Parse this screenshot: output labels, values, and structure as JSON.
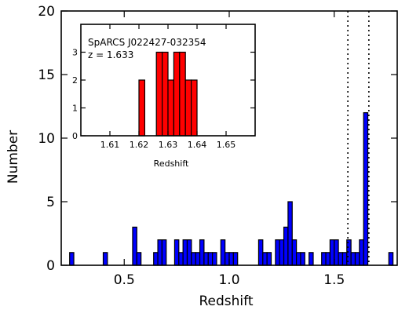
{
  "chart_data": [
    {
      "type": "bar",
      "panel": "main",
      "xlabel": "Redshift",
      "ylabel": "Number",
      "xlim": [
        0.2,
        1.8
      ],
      "ylim": [
        0,
        20
      ],
      "bin_width": 0.02,
      "xticks": [
        "0.5",
        "1.0",
        "1.5"
      ],
      "xtick_values": [
        0.5,
        1.0,
        1.5
      ],
      "yticks": [
        "0",
        "5",
        "10",
        "15",
        "20"
      ],
      "ytick_values": [
        0,
        5,
        10,
        15,
        20
      ],
      "bar_color": "#0000ff",
      "bins": [
        {
          "x": 0.24,
          "y": 1
        },
        {
          "x": 0.4,
          "y": 1
        },
        {
          "x": 0.54,
          "y": 3
        },
        {
          "x": 0.56,
          "y": 1
        },
        {
          "x": 0.64,
          "y": 1
        },
        {
          "x": 0.66,
          "y": 2
        },
        {
          "x": 0.68,
          "y": 2
        },
        {
          "x": 0.74,
          "y": 2
        },
        {
          "x": 0.76,
          "y": 1
        },
        {
          "x": 0.78,
          "y": 2
        },
        {
          "x": 0.8,
          "y": 2
        },
        {
          "x": 0.82,
          "y": 1
        },
        {
          "x": 0.84,
          "y": 1
        },
        {
          "x": 0.86,
          "y": 2
        },
        {
          "x": 0.88,
          "y": 1
        },
        {
          "x": 0.9,
          "y": 1
        },
        {
          "x": 0.92,
          "y": 1
        },
        {
          "x": 0.96,
          "y": 2
        },
        {
          "x": 0.98,
          "y": 1
        },
        {
          "x": 1.0,
          "y": 1
        },
        {
          "x": 1.02,
          "y": 1
        },
        {
          "x": 1.14,
          "y": 2
        },
        {
          "x": 1.16,
          "y": 1
        },
        {
          "x": 1.18,
          "y": 1
        },
        {
          "x": 1.22,
          "y": 2
        },
        {
          "x": 1.24,
          "y": 2
        },
        {
          "x": 1.26,
          "y": 3
        },
        {
          "x": 1.28,
          "y": 5
        },
        {
          "x": 1.3,
          "y": 2
        },
        {
          "x": 1.32,
          "y": 1
        },
        {
          "x": 1.34,
          "y": 1
        },
        {
          "x": 1.38,
          "y": 1
        },
        {
          "x": 1.44,
          "y": 1
        },
        {
          "x": 1.46,
          "y": 1
        },
        {
          "x": 1.48,
          "y": 2
        },
        {
          "x": 1.5,
          "y": 2
        },
        {
          "x": 1.52,
          "y": 1
        },
        {
          "x": 1.54,
          "y": 1
        },
        {
          "x": 1.56,
          "y": 2
        },
        {
          "x": 1.58,
          "y": 1
        },
        {
          "x": 1.6,
          "y": 1
        },
        {
          "x": 1.62,
          "y": 2
        },
        {
          "x": 1.64,
          "y": 12
        },
        {
          "x": 1.76,
          "y": 1
        }
      ],
      "vlines": [
        1.565,
        1.665
      ]
    },
    {
      "type": "bar",
      "panel": "inset",
      "annotation_lines": [
        "SpARCS J022427-032354",
        "z = 1.633"
      ],
      "xlabel": "Redshift",
      "xlim": [
        1.6,
        1.66
      ],
      "ylim": [
        0,
        4
      ],
      "bin_width": 0.002,
      "xticks": [
        "1.61",
        "1.62",
        "1.63",
        "1.64",
        "1.65"
      ],
      "xtick_values": [
        1.61,
        1.62,
        1.63,
        1.64,
        1.65
      ],
      "yticks": [
        "0",
        "1",
        "2",
        "3"
      ],
      "ytick_values": [
        0,
        1,
        2,
        3
      ],
      "bar_color": "#ff0000",
      "bins": [
        {
          "x": 1.62,
          "y": 2
        },
        {
          "x": 1.626,
          "y": 3
        },
        {
          "x": 1.628,
          "y": 3
        },
        {
          "x": 1.63,
          "y": 2
        },
        {
          "x": 1.632,
          "y": 3
        },
        {
          "x": 1.634,
          "y": 3
        },
        {
          "x": 1.636,
          "y": 2
        },
        {
          "x": 1.638,
          "y": 2
        }
      ]
    }
  ]
}
